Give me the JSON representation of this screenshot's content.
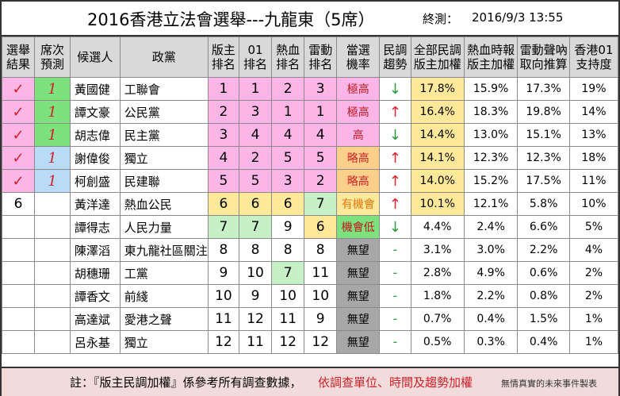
{
  "title": "2016香港立法會選舉---九龍東（5席）",
  "exit_poll": {
    "label": "終測：",
    "time": "2016/9/3 13:55"
  },
  "headers": [
    "選舉結果",
    "席次預測",
    "候選人",
    "政黨",
    "版主排名",
    "01排名",
    "熱血排名",
    "雷動排名",
    "當選機率",
    "民調趨勢",
    "全部民調版主加權",
    "熱血時報版主加權",
    "雷動聲吶取向推算",
    "香港01支持度"
  ],
  "header_lines": [
    [
      "選舉",
      "結果"
    ],
    [
      "席次",
      "預測"
    ],
    [
      "候選人"
    ],
    [
      "政黨"
    ],
    [
      "版主",
      "排名"
    ],
    [
      "01",
      "排名"
    ],
    [
      "熱血",
      "排名"
    ],
    [
      "雷動",
      "排名"
    ],
    [
      "當選",
      "機率"
    ],
    [
      "民調",
      "趨勢"
    ],
    [
      "全部民調",
      "版主加權"
    ],
    [
      "熱血時報",
      "版主加權"
    ],
    [
      "雷動聲吶",
      "取向推算"
    ],
    [
      "香港01",
      "支持度"
    ]
  ],
  "rows": [
    {
      "result": "✓",
      "seat": "1",
      "name": "黃國健",
      "party": "工聯會",
      "rank_host": "1",
      "rank_01": "1",
      "rank_hot": "2",
      "rank_lei": "3",
      "chance": "極高",
      "trend": "↓",
      "all_poll": "17.8%",
      "hot_poll": "15.9%",
      "lei_poll": "17.3%",
      "hk01": "19%"
    },
    {
      "result": "✓",
      "seat": "1",
      "name": "譚文豪",
      "party": "公民黨",
      "rank_host": "2",
      "rank_01": "3",
      "rank_hot": "1",
      "rank_lei": "1",
      "chance": "極高",
      "trend": "↑",
      "all_poll": "16.4%",
      "hot_poll": "18.3%",
      "lei_poll": "19.8%",
      "hk01": "14%"
    },
    {
      "result": "✓",
      "seat": "1",
      "name": "胡志偉",
      "party": "民主黨",
      "rank_host": "3",
      "rank_01": "4",
      "rank_hot": "4",
      "rank_lei": "4",
      "chance": "高",
      "trend": "↓",
      "all_poll": "14.4%",
      "hot_poll": "13.0%",
      "lei_poll": "15.1%",
      "hk01": "13%"
    },
    {
      "result": "✓",
      "seat": "1",
      "name": "謝偉俊",
      "party": "獨立",
      "rank_host": "4",
      "rank_01": "2",
      "rank_hot": "5",
      "rank_lei": "5",
      "chance": "略高",
      "trend": "↑",
      "all_poll": "14.1%",
      "hot_poll": "12.3%",
      "lei_poll": "12.3%",
      "hk01": "18%"
    },
    {
      "result": "✓",
      "seat": "1",
      "name": "柯創盛",
      "party": "民建聯",
      "rank_host": "5",
      "rank_01": "5",
      "rank_hot": "3",
      "rank_lei": "2",
      "chance": "略高",
      "trend": "↑",
      "all_poll": "14.0%",
      "hot_poll": "15.2%",
      "lei_poll": "17.5%",
      "hk01": "11%"
    },
    {
      "result": "6",
      "seat": "",
      "name": "黃洋達",
      "party": "熱血公民",
      "rank_host": "6",
      "rank_01": "6",
      "rank_hot": "6",
      "rank_lei": "7",
      "chance": "有機會",
      "trend": "↑",
      "all_poll": "10.1%",
      "hot_poll": "12.1%",
      "lei_poll": "5.8%",
      "hk01": "10%"
    },
    {
      "result": "",
      "seat": "",
      "name": "譚得志",
      "party": "人民力量",
      "rank_host": "7",
      "rank_01": "7",
      "rank_hot": "9",
      "rank_lei": "6",
      "chance": "機會低",
      "trend": "↓",
      "all_poll": "4.4%",
      "hot_poll": "2.4%",
      "lei_poll": "6.6%",
      "hk01": "5%"
    },
    {
      "result": "",
      "seat": "",
      "name": "陳澤滔",
      "party": "東九龍社區關注",
      "rank_host": "8",
      "rank_01": "8",
      "rank_hot": "8",
      "rank_lei": "8",
      "chance": "無望",
      "trend": "-",
      "all_poll": "3.1%",
      "hot_poll": "3.0%",
      "lei_poll": "2.2%",
      "hk01": "4%"
    },
    {
      "result": "",
      "seat": "",
      "name": "胡穗珊",
      "party": "工黨",
      "rank_host": "9",
      "rank_01": "10",
      "rank_hot": "7",
      "rank_lei": "11",
      "chance": "無望",
      "trend": "-",
      "all_poll": "2.8%",
      "hot_poll": "4.9%",
      "lei_poll": "0.6%",
      "hk01": "2%"
    },
    {
      "result": "",
      "seat": "",
      "name": "譚香文",
      "party": "前綫",
      "rank_host": "10",
      "rank_01": "9",
      "rank_hot": "10",
      "rank_lei": "10",
      "chance": "無望",
      "trend": "-",
      "all_poll": "1.8%",
      "hot_poll": "2.2%",
      "lei_poll": "0.8%",
      "hk01": "2%"
    },
    {
      "result": "",
      "seat": "",
      "name": "高達斌",
      "party": "愛港之聲",
      "rank_host": "11",
      "rank_01": "12",
      "rank_hot": "11",
      "rank_lei": "9",
      "chance": "無望",
      "trend": "-",
      "all_poll": "0.7%",
      "hot_poll": "0.4%",
      "lei_poll": "1.5%",
      "hk01": "1%"
    },
    {
      "result": "",
      "seat": "",
      "name": "呂永基",
      "party": "獨立",
      "rank_host": "12",
      "rank_01": "11",
      "rank_hot": "12",
      "rank_lei": "12",
      "chance": "無望",
      "trend": "-",
      "all_poll": "0.5%",
      "hot_poll": "0.3%",
      "lei_poll": "0.4%",
      "hk01": "1%"
    }
  ],
  "footer": {
    "note_black": "註：『版主民調加權』係參考所有調查數據，",
    "note_red": "依調查單位、時間及趨勢加權",
    "credit": "無情真實的未來事件製表"
  },
  "colors": {
    "pink": "#fbb6e7",
    "green": "#7de27d",
    "light_green": "#c6f0c6",
    "yellow": "#fee89a",
    "orange": "#fcd08a",
    "peach": "#fde3bf",
    "grey": "#a7a7a7",
    "red": "#d0202a"
  }
}
